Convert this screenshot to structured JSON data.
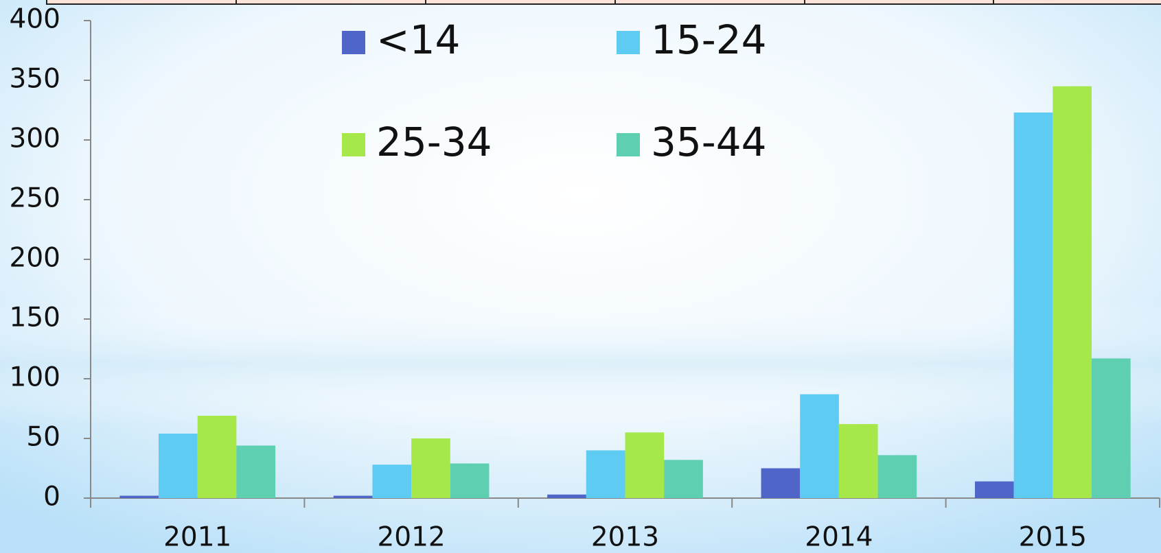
{
  "chart_data": {
    "type": "bar",
    "categories": [
      "2011",
      "2012",
      "2013",
      "2014",
      "2015"
    ],
    "series": [
      {
        "name": "<14",
        "color": "#4f66c8",
        "values": [
          2,
          2,
          3,
          25,
          14
        ]
      },
      {
        "name": "15-24",
        "color": "#5ecbf2",
        "values": [
          54,
          28,
          40,
          87,
          323
        ]
      },
      {
        "name": "25-34",
        "color": "#a6e84a",
        "values": [
          69,
          50,
          55,
          62,
          345
        ]
      },
      {
        "name": "35-44",
        "color": "#5ecfb0",
        "values": [
          44,
          29,
          32,
          36,
          117
        ]
      }
    ],
    "ylim": [
      0,
      400
    ],
    "yticks": [
      0,
      50,
      100,
      150,
      200,
      250,
      300,
      350,
      400
    ]
  }
}
